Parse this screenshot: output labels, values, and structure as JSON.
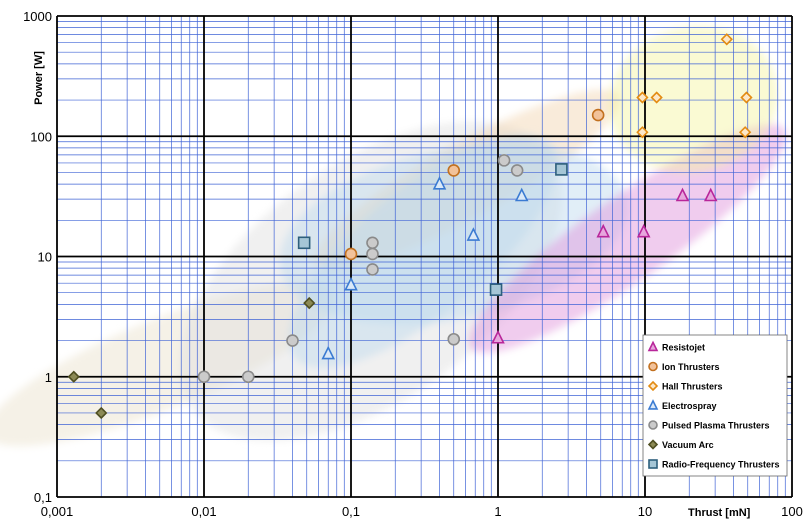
{
  "chart_data": {
    "type": "scatter",
    "xscale": "log",
    "yscale": "log",
    "xlim": [
      0.001,
      100
    ],
    "ylim": [
      0.1,
      1000
    ],
    "xlabel": "Thrust [mN]",
    "ylabel": "Power [W]",
    "x_ticks": [
      "0,001",
      "0,01",
      "0,1",
      "1",
      "10",
      "100"
    ],
    "y_ticks": [
      "0,1",
      "1",
      "10",
      "100",
      "1000"
    ],
    "grid": true,
    "legend_position": "bottom-right",
    "series": [
      {
        "name": "Resistojet",
        "marker": "triangle",
        "color": "#b8269a",
        "fill": "#e7a6dd",
        "region_color": "#dd8fd9",
        "points": [
          [
            1.0,
            2.1
          ],
          [
            5.2,
            16
          ],
          [
            9.8,
            16
          ],
          [
            18,
            32
          ],
          [
            28,
            32
          ]
        ]
      },
      {
        "name": "Ion Thrusters",
        "marker": "circle",
        "color": "#c2701f",
        "fill": "#f2c29a",
        "region_color": "#f2d2ac",
        "points": [
          [
            0.1,
            10.5
          ],
          [
            0.5,
            52
          ],
          [
            4.8,
            150
          ]
        ]
      },
      {
        "name": "Hall Thrusters",
        "marker": "diamond",
        "color": "#e38b12",
        "fill": "#fde8c8",
        "region_color": "#f5f59e",
        "points": [
          [
            9.6,
            210
          ],
          [
            12,
            210
          ],
          [
            36,
            640
          ],
          [
            49,
            210
          ],
          [
            9.6,
            108
          ],
          [
            48,
            108
          ]
        ]
      },
      {
        "name": "Electrospray",
        "marker": "triangle",
        "color": "#3b7bd2",
        "fill": "#dbe9f8",
        "region_color": "#bcd9ee",
        "points": [
          [
            0.07,
            1.55
          ],
          [
            0.1,
            5.8
          ],
          [
            0.4,
            40
          ],
          [
            0.68,
            15
          ],
          [
            1.45,
            32
          ]
        ]
      },
      {
        "name": "Pulsed Plasma Thrusters",
        "marker": "circle",
        "color": "#8a8a8a",
        "fill": "#cbcbcb",
        "region_color": "#dedede",
        "points": [
          [
            0.01,
            1.0
          ],
          [
            0.02,
            1.0
          ],
          [
            0.04,
            2.0
          ],
          [
            0.14,
            13
          ],
          [
            0.14,
            10.5
          ],
          [
            0.14,
            7.8
          ],
          [
            0.5,
            2.05
          ],
          [
            1.1,
            63
          ],
          [
            1.35,
            52
          ]
        ]
      },
      {
        "name": "Vacuum Arc",
        "marker": "diamond",
        "color": "#4f4f22",
        "fill": "#8c8a55",
        "region_color": "#e8dfc9",
        "points": [
          [
            0.0013,
            1.0
          ],
          [
            0.002,
            0.5
          ],
          [
            0.052,
            4.1
          ]
        ]
      },
      {
        "name": "Radio-Frequency Thrusters",
        "marker": "square",
        "color": "#2d5f7c",
        "fill": "#a5c6d6",
        "region_color": "#bcd9ee",
        "points": [
          [
            0.048,
            13
          ],
          [
            0.97,
            5.3
          ],
          [
            2.7,
            53
          ]
        ]
      }
    ]
  }
}
